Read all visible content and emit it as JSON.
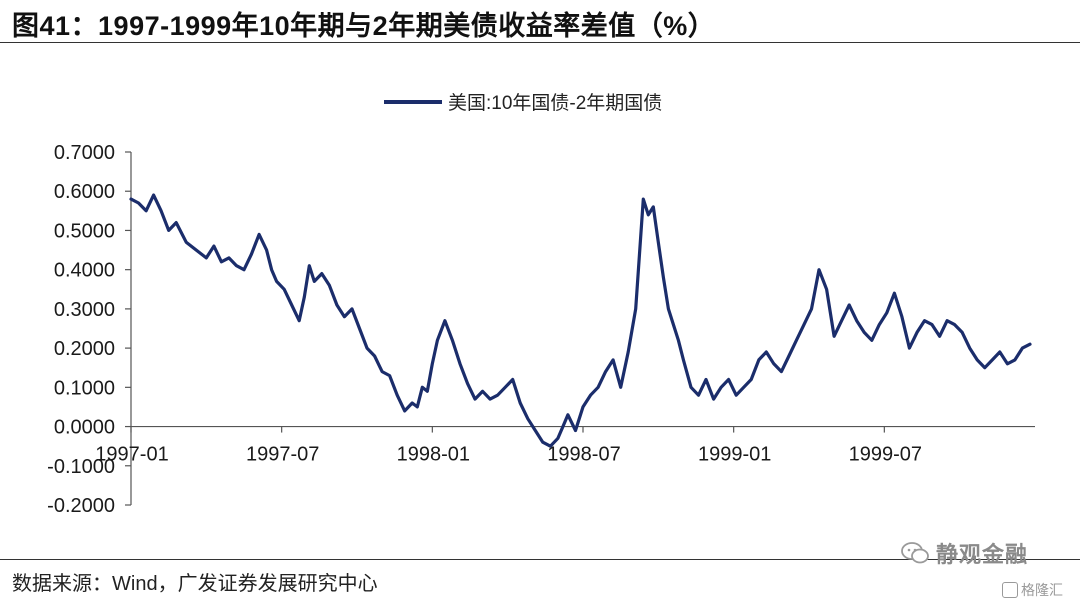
{
  "title": "图41：1997-1999年10年期与2年期美债收益率差值（%）",
  "source": "数据来源：Wind，广发证券发展研究中心",
  "watermark": {
    "text": "静观金融",
    "icon": "wechat-icon",
    "sub_text": "格隆汇",
    "sub_icon": "brand-logo-icon"
  },
  "colors": {
    "series": "#1b2d6b",
    "axis": "#555555",
    "text": "#1a1a1a"
  },
  "chart_data": {
    "type": "line",
    "title": "",
    "xlabel": "",
    "ylabel": "",
    "ylim": [
      -0.2,
      0.7
    ],
    "yticks": [
      "0.7000",
      "0.6000",
      "0.5000",
      "0.4000",
      "0.3000",
      "0.2000",
      "0.1000",
      "0.0000",
      "-0.1000",
      "-0.2000"
    ],
    "ytick_values": [
      0.7,
      0.6,
      0.5,
      0.4,
      0.3,
      0.2,
      0.1,
      0.0,
      -0.1,
      -0.2
    ],
    "xticks": [
      "1997-01",
      "1997-07",
      "1998-01",
      "1998-07",
      "1999-01",
      "1999-07"
    ],
    "xtick_months": [
      0,
      6,
      12,
      18,
      24,
      30
    ],
    "x_range_months": [
      0,
      36
    ],
    "legend": "top-center",
    "grid": false,
    "series": [
      {
        "name": "美国:10年国债-2年期国债",
        "x": [
          0,
          0.3,
          0.6,
          0.9,
          1.2,
          1.5,
          1.8,
          2.2,
          2.6,
          3.0,
          3.3,
          3.6,
          3.9,
          4.2,
          4.5,
          4.8,
          5.1,
          5.4,
          5.6,
          5.8,
          6.1,
          6.4,
          6.7,
          6.9,
          7.1,
          7.3,
          7.6,
          7.9,
          8.2,
          8.5,
          8.8,
          9.1,
          9.4,
          9.7,
          10.0,
          10.3,
          10.6,
          10.9,
          11.2,
          11.4,
          11.6,
          11.8,
          12.0,
          12.2,
          12.5,
          12.8,
          13.1,
          13.4,
          13.7,
          14.0,
          14.3,
          14.6,
          14.9,
          15.2,
          15.5,
          15.8,
          16.1,
          16.4,
          16.7,
          17.0,
          17.2,
          17.4,
          17.7,
          18.0,
          18.3,
          18.6,
          18.9,
          19.2,
          19.5,
          19.8,
          20.1,
          20.4,
          20.6,
          20.8,
          21.0,
          21.2,
          21.4,
          21.6,
          21.8,
          22.0,
          22.3,
          22.6,
          22.9,
          23.2,
          23.5,
          23.8,
          24.1,
          24.4,
          24.7,
          25.0,
          25.3,
          25.6,
          25.9,
          26.2,
          26.5,
          26.8,
          27.1,
          27.4,
          27.7,
          28.0,
          28.3,
          28.6,
          28.9,
          29.2,
          29.5,
          29.8,
          30.1,
          30.4,
          30.7,
          31.0,
          31.3,
          31.6,
          31.9,
          32.2,
          32.5,
          32.8,
          33.1,
          33.4,
          33.7,
          34.0,
          34.3,
          34.6,
          34.9,
          35.2,
          35.5,
          35.8
        ],
        "values": [
          0.58,
          0.57,
          0.55,
          0.59,
          0.55,
          0.5,
          0.52,
          0.47,
          0.45,
          0.43,
          0.46,
          0.42,
          0.43,
          0.41,
          0.4,
          0.44,
          0.49,
          0.45,
          0.4,
          0.37,
          0.35,
          0.31,
          0.27,
          0.33,
          0.41,
          0.37,
          0.39,
          0.36,
          0.31,
          0.28,
          0.3,
          0.25,
          0.2,
          0.18,
          0.14,
          0.13,
          0.08,
          0.04,
          0.06,
          0.05,
          0.1,
          0.09,
          0.16,
          0.22,
          0.27,
          0.22,
          0.16,
          0.11,
          0.07,
          0.09,
          0.07,
          0.08,
          0.1,
          0.12,
          0.06,
          0.02,
          -0.01,
          -0.04,
          -0.05,
          -0.03,
          0.0,
          0.03,
          -0.01,
          0.05,
          0.08,
          0.1,
          0.14,
          0.17,
          0.1,
          0.19,
          0.3,
          0.58,
          0.54,
          0.56,
          0.47,
          0.38,
          0.3,
          0.26,
          0.22,
          0.17,
          0.1,
          0.08,
          0.12,
          0.07,
          0.1,
          0.12,
          0.08,
          0.1,
          0.12,
          0.17,
          0.19,
          0.16,
          0.14,
          0.18,
          0.22,
          0.26,
          0.3,
          0.4,
          0.35,
          0.23,
          0.27,
          0.31,
          0.27,
          0.24,
          0.22,
          0.26,
          0.29,
          0.34,
          0.28,
          0.2,
          0.24,
          0.27,
          0.26,
          0.23,
          0.27,
          0.26,
          0.24,
          0.2,
          0.17,
          0.15,
          0.17,
          0.19,
          0.16,
          0.17,
          0.2,
          0.21
        ]
      }
    ]
  }
}
